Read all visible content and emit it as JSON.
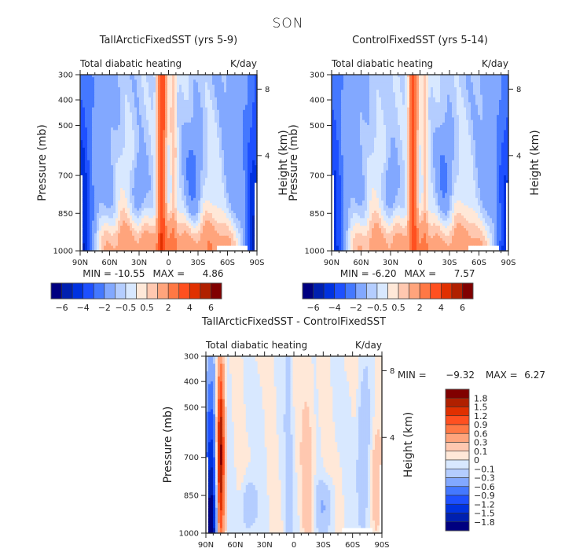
{
  "figure_title": "SON",
  "colors": {
    "panel_scale": [
      "#000080",
      "#0020b0",
      "#0032e0",
      "#1e50ff",
      "#4478ff",
      "#82a8ff",
      "#b4cdff",
      "#d8e8ff",
      "#ffe8d8",
      "#ffc8b0",
      "#ffa47c",
      "#ff7844",
      "#ff5020",
      "#e03000",
      "#b02000",
      "#800000"
    ],
    "diff_scale": [
      "#800000",
      "#b02000",
      "#e03000",
      "#ff5020",
      "#ff7844",
      "#ffa47c",
      "#ffc8b0",
      "#ffe8d8",
      "#d8e8ff",
      "#b4cdff",
      "#82a8ff",
      "#4478ff",
      "#1e50ff",
      "#0032e0",
      "#0020b0",
      "#000080"
    ],
    "missing": "#ffffff",
    "axis": "#222222"
  },
  "chart_data": [
    {
      "type": "heatmap",
      "title": "TallArcticFixedSST (yrs 5-9)",
      "subtitle_left": "Total diabatic heating",
      "subtitle_right": "K/day",
      "xlabel": "",
      "ylabel": "Pressure (mb)",
      "ylabel_right": "Height (km)",
      "x_ticks": [
        "90N",
        "60N",
        "30N",
        "0",
        "30S",
        "60S",
        "90S"
      ],
      "x_range": [
        90,
        -90
      ],
      "y_ticks": [
        "300",
        "400",
        "500",
        "700",
        "850",
        "1000"
      ],
      "y_range_mb": [
        1000,
        300
      ],
      "y_right_ticks": [
        "8",
        "4"
      ],
      "min_label": "MIN =",
      "min_value": "-10.55",
      "max_label": "MAX =",
      "max_value": "4.86",
      "colorbar_labels": [
        "-6",
        "-4",
        "-2",
        "-0.5",
        "0.5",
        "2",
        "4",
        "6"
      ],
      "colorbar_levels": [
        -6,
        -5,
        -4,
        -3,
        -2,
        -1,
        -0.5,
        0,
        0.5,
        1,
        2,
        3,
        4,
        5,
        6
      ],
      "pattern": "control",
      "scale": 1.1
    },
    {
      "type": "heatmap",
      "title": "ControlFixedSST (yrs 5-14)",
      "subtitle_left": "Total diabatic heating",
      "subtitle_right": "K/day",
      "xlabel": "",
      "ylabel": "Pressure (mb)",
      "ylabel_right": "Height (km)",
      "x_ticks": [
        "90N",
        "60N",
        "30N",
        "0",
        "30S",
        "60S",
        "90S"
      ],
      "x_range": [
        90,
        -90
      ],
      "y_ticks": [
        "300",
        "400",
        "500",
        "700",
        "850",
        "1000"
      ],
      "y_range_mb": [
        1000,
        300
      ],
      "y_right_ticks": [
        "8",
        "4"
      ],
      "min_label": "MIN =",
      "min_value": "-6.20",
      "max_label": "MAX =",
      "max_value": "7.57",
      "colorbar_labels": [
        "-6",
        "-4",
        "-2",
        "-0.5",
        "0.5",
        "2",
        "4",
        "6"
      ],
      "colorbar_levels": [
        -6,
        -5,
        -4,
        -3,
        -2,
        -1,
        -0.5,
        0,
        0.5,
        1,
        2,
        3,
        4,
        5,
        6
      ],
      "pattern": "control",
      "scale": 1.0
    },
    {
      "type": "heatmap",
      "title": "TallArcticFixedSST - ControlFixedSST",
      "subtitle_left": "Total diabatic heating",
      "subtitle_right": "K/day",
      "xlabel": "",
      "ylabel": "Pressure (mb)",
      "ylabel_right": "Height (km)",
      "x_ticks": [
        "90N",
        "60N",
        "30N",
        "0",
        "30S",
        "60S",
        "90S"
      ],
      "x_range": [
        90,
        -90
      ],
      "y_ticks": [
        "300",
        "400",
        "500",
        "700",
        "850",
        "1000"
      ],
      "y_range_mb": [
        1000,
        300
      ],
      "y_right_ticks": [
        "8",
        "4"
      ],
      "min_label": "MIN =",
      "min_value": "-9.32",
      "max_label": "MAX =",
      "max_value": "6.27",
      "colorbar_labels": [
        "1.8",
        "1.5",
        "1.2",
        "0.9",
        "0.6",
        "0.3",
        "0.1",
        "0",
        "-0.1",
        "-0.3",
        "-0.6",
        "-0.9",
        "-1.2",
        "-1.5",
        "-1.8"
      ],
      "colorbar_levels": [
        1.8,
        1.5,
        1.2,
        0.9,
        0.6,
        0.3,
        0.1,
        0,
        -0.1,
        -0.3,
        -0.6,
        -0.9,
        -1.2,
        -1.5,
        -1.8
      ],
      "pattern": "diff",
      "scale": 1.0
    }
  ]
}
